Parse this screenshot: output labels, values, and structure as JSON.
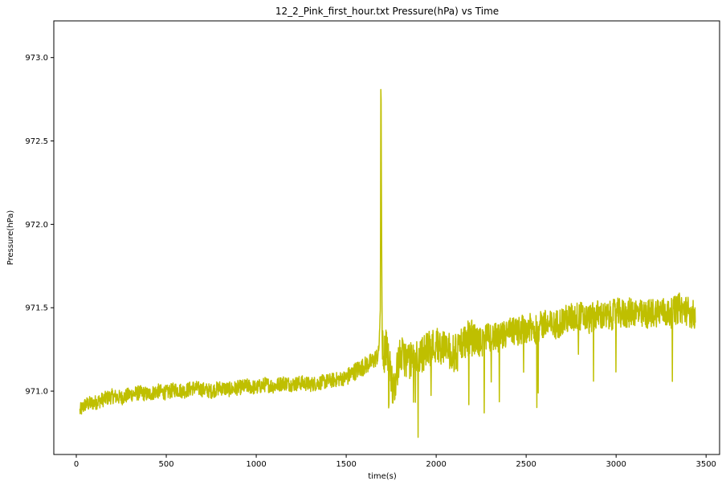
{
  "chart_data": {
    "type": "line",
    "title": "12_2_Pink_first_hour.txt  Pressure(hPa) vs Time",
    "xlabel": "time(s)",
    "ylabel": "Pressure(hPa)",
    "xlim": [
      -125,
      3575
    ],
    "ylim": [
      970.62,
      973.22
    ],
    "xticks": [
      0,
      500,
      1000,
      1500,
      2000,
      2500,
      3000,
      3500
    ],
    "xtick_labels": [
      "0",
      "500",
      "1000",
      "1500",
      "2000",
      "2500",
      "3000",
      "3500"
    ],
    "yticks": [
      971.0,
      971.5,
      972.0,
      972.5,
      973.0
    ],
    "ytick_labels": [
      "971.0",
      "971.5",
      "972.0",
      "972.5",
      "973.0"
    ],
    "grid": false,
    "series": [
      {
        "color": "#bfbf00",
        "x": [
          20,
          50,
          100,
          150,
          200,
          250,
          300,
          350,
          400,
          450,
          500,
          550,
          600,
          650,
          700,
          750,
          800,
          850,
          900,
          950,
          1000,
          1050,
          1100,
          1150,
          1200,
          1250,
          1300,
          1350,
          1400,
          1450,
          1500,
          1550,
          1600,
          1650,
          1680,
          1690,
          1693,
          1696,
          1700,
          1710,
          1720,
          1750,
          1760,
          1800,
          1850,
          1900,
          1950,
          2000,
          2050,
          2100,
          2150,
          2200,
          2250,
          2300,
          2350,
          2400,
          2450,
          2500,
          2550,
          2600,
          2650,
          2700,
          2750,
          2800,
          2850,
          2900,
          2950,
          3000,
          3050,
          3100,
          3150,
          3200,
          3250,
          3300,
          3350,
          3400,
          3440
        ],
        "y": [
          970.88,
          970.92,
          970.93,
          970.95,
          970.97,
          970.96,
          970.98,
          970.99,
          970.98,
          971.0,
          970.99,
          971.01,
          971.0,
          971.02,
          971.01,
          971.0,
          971.02,
          971.01,
          971.02,
          971.03,
          971.02,
          971.04,
          971.03,
          971.05,
          971.04,
          971.05,
          971.04,
          971.05,
          971.06,
          971.07,
          971.08,
          971.12,
          971.15,
          971.18,
          971.22,
          971.5,
          973.07,
          972.1,
          971.3,
          971.2,
          971.28,
          971.1,
          971.0,
          971.22,
          971.18,
          971.2,
          971.25,
          971.28,
          971.26,
          971.22,
          971.3,
          971.32,
          971.29,
          971.33,
          971.31,
          971.35,
          971.36,
          971.38,
          971.37,
          971.4,
          971.39,
          971.42,
          971.44,
          971.45,
          971.43,
          971.46,
          971.44,
          971.47,
          971.46,
          971.48,
          971.45,
          971.47,
          971.48,
          971.46,
          971.5,
          971.48,
          971.45
        ]
      }
    ]
  }
}
